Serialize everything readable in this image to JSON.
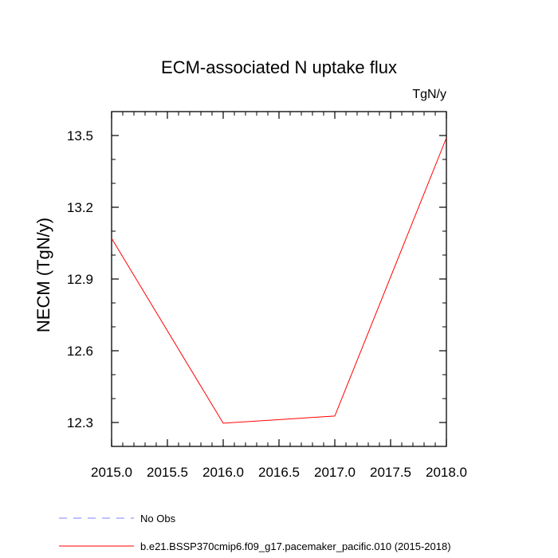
{
  "chart_data": {
    "type": "line",
    "title": "ECM-associated N uptake flux",
    "units_label": "TgN/y",
    "ylabel": "NECM  (TgN/y)",
    "xlabel": "",
    "xlim": [
      2015.0,
      2018.0
    ],
    "ylim": [
      12.2,
      13.6
    ],
    "x_ticks": [
      2015.0,
      2015.5,
      2016.0,
      2016.5,
      2017.0,
      2017.5,
      2018.0
    ],
    "x_tick_labels": [
      "2015.0",
      "2015.5",
      "2016.0",
      "2016.5",
      "2017.0",
      "2017.5",
      "2018.0"
    ],
    "y_ticks": [
      12.3,
      12.6,
      12.9,
      13.2,
      13.5
    ],
    "y_tick_labels": [
      "12.3",
      "12.6",
      "12.9",
      "13.2",
      "13.5"
    ],
    "grid": false,
    "legend_placement": "bottom",
    "series": [
      {
        "name": "No Obs",
        "color": "#8080ff",
        "dash": "dashed",
        "x": [],
        "values": []
      },
      {
        "name": "b.e21.BSSP370cmip6.f09_g17.pacemaker_pacific.010 (2015-2018)",
        "color": "#ff0000",
        "dash": "solid",
        "x": [
          2015,
          2016,
          2017,
          2018
        ],
        "values": [
          13.07,
          12.297,
          12.327,
          13.49
        ]
      }
    ]
  }
}
